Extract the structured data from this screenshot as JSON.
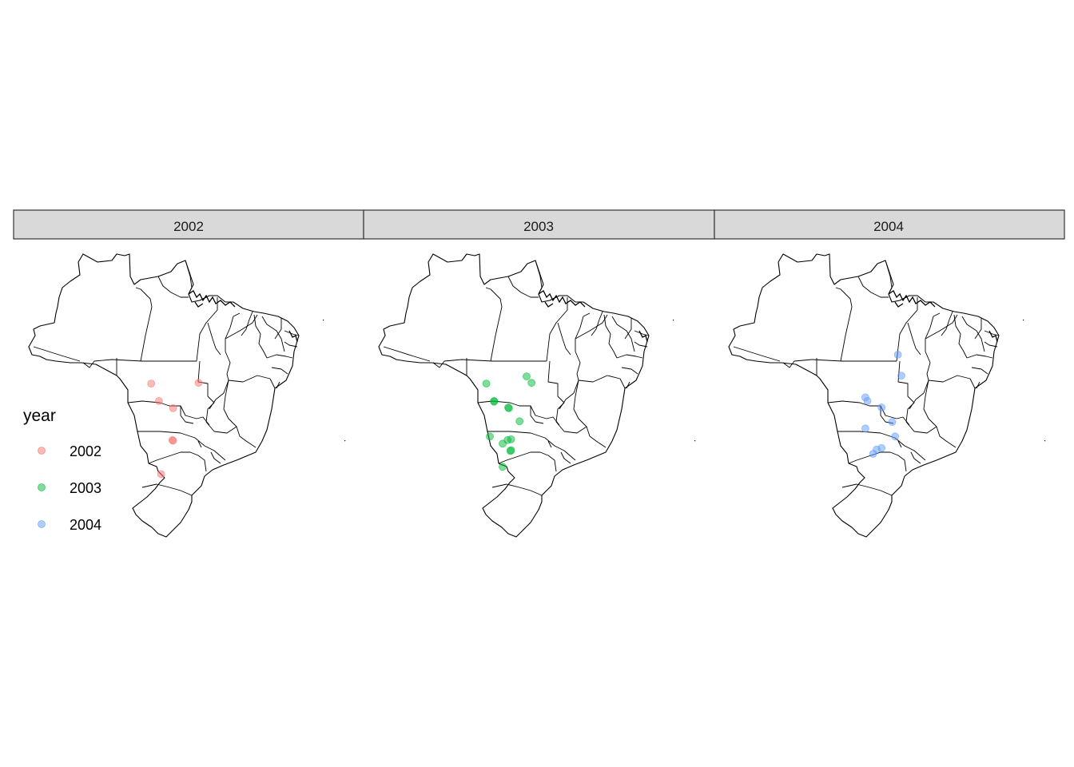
{
  "legend": {
    "title": "year",
    "items": [
      {
        "label": "2002",
        "color": "#F8766D"
      },
      {
        "label": "2003",
        "color": "#00BA38"
      },
      {
        "label": "2004",
        "color": "#619CFF"
      }
    ]
  },
  "facets": [
    {
      "label": "2002",
      "color": "#F8766D",
      "points": [
        {
          "lon": -55.9,
          "lat": -12.6
        },
        {
          "lon": -54.8,
          "lat": -15.0
        },
        {
          "lon": -52.8,
          "lat": -16.0
        },
        {
          "lon": -49.2,
          "lat": -12.5
        },
        {
          "lon": -52.9,
          "lat": -20.4
        },
        {
          "lon": -52.8,
          "lat": -20.5
        },
        {
          "lon": -54.5,
          "lat": -25.1
        }
      ]
    },
    {
      "label": "2003",
      "color": "#00BA38",
      "points": [
        {
          "lon": -58.0,
          "lat": -12.6
        },
        {
          "lon": -56.9,
          "lat": -15.0
        },
        {
          "lon": -56.9,
          "lat": -15.1
        },
        {
          "lon": -54.9,
          "lat": -15.9
        },
        {
          "lon": -54.8,
          "lat": -16.0
        },
        {
          "lon": -52.3,
          "lat": -11.6
        },
        {
          "lon": -51.6,
          "lat": -12.5
        },
        {
          "lon": -53.3,
          "lat": -17.8
        },
        {
          "lon": -57.5,
          "lat": -19.9
        },
        {
          "lon": -55.7,
          "lat": -20.9
        },
        {
          "lon": -55.0,
          "lat": -20.4
        },
        {
          "lon": -54.5,
          "lat": -20.3
        },
        {
          "lon": -54.5,
          "lat": -21.8
        },
        {
          "lon": -54.6,
          "lat": -21.9
        },
        {
          "lon": -55.7,
          "lat": -24.1
        }
      ]
    },
    {
      "label": "2004",
      "color": "#619CFF",
      "points": [
        {
          "lon": -49.3,
          "lat": -8.6
        },
        {
          "lon": -48.8,
          "lat": -11.5
        },
        {
          "lon": -53.9,
          "lat": -14.5
        },
        {
          "lon": -53.6,
          "lat": -15.0
        },
        {
          "lon": -51.6,
          "lat": -15.9
        },
        {
          "lon": -53.9,
          "lat": -18.8
        },
        {
          "lon": -50.1,
          "lat": -17.9
        },
        {
          "lon": -49.7,
          "lat": -19.9
        },
        {
          "lon": -52.3,
          "lat": -21.7
        },
        {
          "lon": -51.6,
          "lat": -21.5
        },
        {
          "lon": -52.8,
          "lat": -22.3
        }
      ]
    }
  ],
  "map": {
    "lon_range": [
      -74,
      -34
    ],
    "lat_range": [
      -34,
      5.3
    ]
  }
}
